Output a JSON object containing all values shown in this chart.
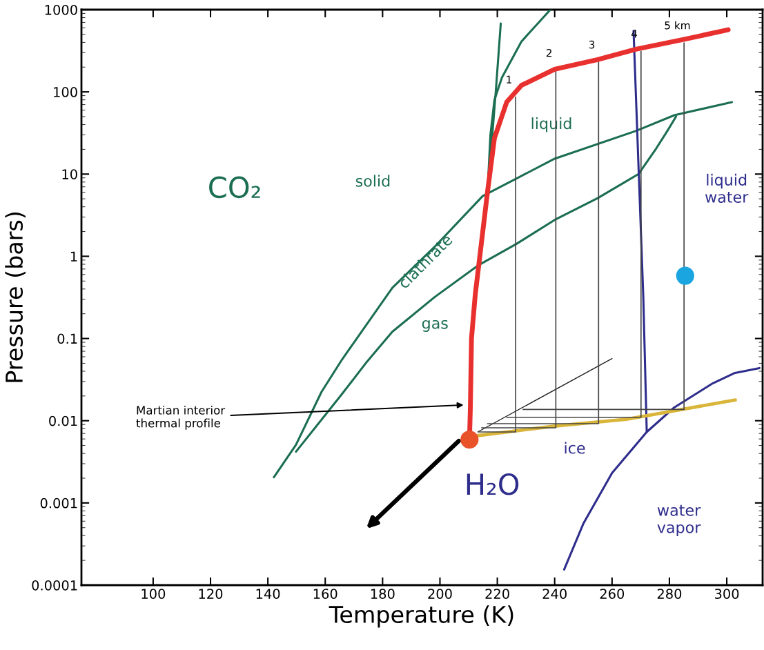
{
  "chart_data": {
    "type": "line",
    "xlabel": "Temperature (K)",
    "ylabel": "Pressure (bars)",
    "log": "y",
    "grid": false,
    "legend": false,
    "xlim": [
      75,
      312.5
    ],
    "xticks": [
      100,
      120,
      140,
      160,
      180,
      200,
      220,
      240,
      260,
      280,
      300
    ],
    "ylim": [
      0.0001,
      1000
    ],
    "yticks": [
      0.0001,
      0.001,
      0.01,
      0.1,
      1,
      10,
      100,
      1000
    ],
    "series": [
      {
        "color": "#1b6e52",
        "x": [
          216.6,
          218.3,
          219.5,
          221.2
        ],
        "values": [
          6.2,
          31.5,
          105,
          678
        ]
      },
      {
        "color": "#1b6e52",
        "x": [
          216.6,
          217.6,
          219,
          221.6,
          228.4,
          238.5
        ],
        "values": [
          6.2,
          30,
          80,
          149,
          409,
          1000
        ]
      },
      {
        "color": "#1b6e52",
        "x": [
          142.1,
          149.8,
          158.7,
          165.9,
          183.4,
          198.2,
          214.9,
          240,
          268.4,
          281.7,
          301.8
        ],
        "values": [
          0.00205,
          0.0051,
          0.0224,
          0.0558,
          0.413,
          1.31,
          5.4,
          15.4,
          33.6,
          52,
          75
        ]
      },
      {
        "color": "#1b6e52",
        "x": [
          149.8,
          165.8,
          174.5,
          183.4,
          198.2,
          213.2,
          226.6,
          240,
          255,
          269.2,
          275,
          279.3,
          282.3
        ],
        "values": [
          0.0042,
          0.021,
          0.052,
          0.121,
          0.32,
          0.77,
          1.41,
          2.77,
          5.1,
          10.0,
          19.5,
          33.6,
          50
        ]
      },
      {
        "color": "#444444",
        "x": [
          213.5,
          226.4,
          226.4
        ],
        "values": [
          0.0073,
          0.0073,
          86.5
        ]
      },
      {
        "color": "#444444",
        "x": [
          214.5,
          240.4,
          240.4
        ],
        "values": [
          0.0082,
          0.0082,
          182
        ]
      },
      {
        "color": "#444444",
        "x": [
          216.6,
          255.3,
          255.3
        ],
        "values": [
          0.0092,
          0.0092,
          230
        ]
      },
      {
        "color": "#444444",
        "x": [
          223.3,
          270.1,
          270.1
        ],
        "values": [
          0.011,
          0.011,
          312
        ]
      },
      {
        "color": "#444444",
        "x": [
          229,
          285.1,
          285.1
        ],
        "values": [
          0.0137,
          0.0137,
          394
        ]
      },
      {
        "color": "#222222",
        "x": [
          213.2,
          260
        ],
        "values": [
          0.0073,
          0.057
        ]
      },
      {
        "color": "#2e2d8c",
        "x": [
          267.5,
          270.9,
          272.1
        ],
        "values": [
          553,
          0.32,
          0.0073
        ]
      },
      {
        "color": "#2e2d8c",
        "x": [
          243.3,
          250,
          260,
          272.1,
          281.7,
          295.1,
          302.6,
          311.4
        ],
        "values": [
          0.000155,
          0.00056,
          0.00231,
          0.0073,
          0.0145,
          0.0285,
          0.0379,
          0.0437
        ]
      },
      {
        "color": "#d9b53a",
        "x": [
          210.3,
          213.2,
          240,
          265,
          280,
          303
        ],
        "values": [
          0.0059,
          0.0066,
          0.0086,
          0.0104,
          0.0129,
          0.0179
        ]
      },
      {
        "color": "#e8312f",
        "x": [
          210.3,
          210.6,
          211,
          212.3,
          216.6,
          219,
          223.3,
          228.4,
          240,
          255,
          268.3,
          285,
          300.5
        ],
        "values": [
          0.0059,
          0.0143,
          0.1,
          0.34,
          6.15,
          27.4,
          75.5,
          120,
          188,
          247,
          330,
          434,
          570
        ]
      },
      {
        "type": "scatter",
        "marker": "circle",
        "color": "#e8532a",
        "x": [
          210.3
        ],
        "values": [
          0.0059
        ]
      },
      {
        "type": "scatter",
        "marker": "circle",
        "color": "#1aa5e0",
        "x": [
          285.5
        ],
        "values": [
          0.58
        ]
      }
    ],
    "annotations": [
      "Martian interior\nthermal profile",
      {
        "text": "1",
        "x": 226.4,
        "y": 86.5
      },
      {
        "text": "2",
        "x": 240.4,
        "y": 182
      },
      {
        "text": "3",
        "x": 255.3,
        "y": 230
      },
      {
        "text": "4",
        "x": 270.1,
        "y": 312
      },
      {
        "text": "5 km",
        "x": 285.1,
        "y": 394
      },
      "CO₂",
      "solid",
      "liquid",
      "clathrate",
      "gas",
      "liquid\nwater",
      "ice",
      "H₂O",
      "water\nvapor"
    ]
  }
}
